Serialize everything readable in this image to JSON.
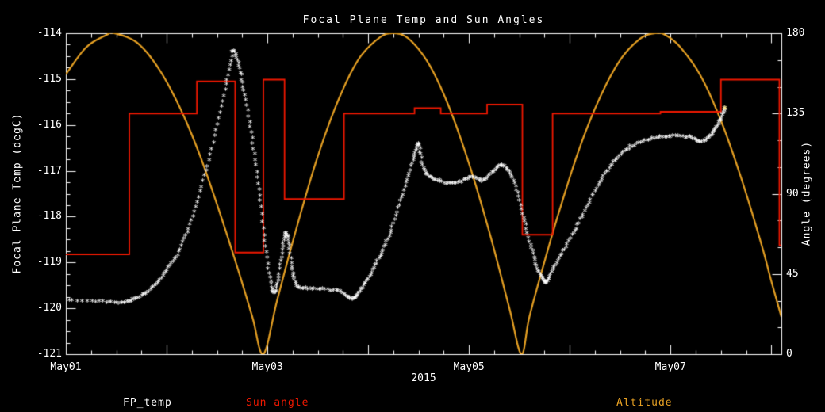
{
  "colors": {
    "background": "#000000",
    "axis": "#ffffff",
    "fp_temp": "#ffffff",
    "sun_angle": "#f01800",
    "altitude": "#e6a023",
    "end_marker": "#ffe87a"
  },
  "chart_data": {
    "type": "line",
    "title": "Focal Plane Temp and Sun Angles",
    "xlabel": "2015",
    "x_range_days": [
      0,
      7.1
    ],
    "x_ticks": [
      {
        "day": 0,
        "label": "May01"
      },
      {
        "day": 2,
        "label": "May03"
      },
      {
        "day": 4,
        "label": "May05"
      },
      {
        "day": 6,
        "label": "May07"
      }
    ],
    "left_axis": {
      "label": "Focal Plane Temp (degC)",
      "range": [
        -121,
        -114
      ],
      "ticks": [
        -114,
        -115,
        -116,
        -117,
        -118,
        -119,
        -120,
        -121
      ]
    },
    "right_axis": {
      "label": "Angle (degrees)",
      "range": [
        0,
        180
      ],
      "ticks": [
        180,
        135,
        90,
        45,
        0
      ]
    },
    "end_marker_color": "#ffe87a",
    "series": [
      {
        "name": "Altitude",
        "color": "#e6a023",
        "style": "smooth",
        "axis": "right",
        "points": [
          [
            0.0,
            157
          ],
          [
            0.2,
            172
          ],
          [
            0.4,
            179
          ],
          [
            0.48,
            180
          ],
          [
            0.7,
            175
          ],
          [
            0.9,
            162
          ],
          [
            1.1,
            142
          ],
          [
            1.3,
            116
          ],
          [
            1.5,
            84
          ],
          [
            1.7,
            49
          ],
          [
            1.85,
            21
          ],
          [
            1.96,
            0
          ],
          [
            2.1,
            31
          ],
          [
            2.3,
            73
          ],
          [
            2.5,
            111
          ],
          [
            2.7,
            142
          ],
          [
            2.9,
            165
          ],
          [
            3.1,
            177
          ],
          [
            3.24,
            180
          ],
          [
            3.4,
            177
          ],
          [
            3.6,
            163
          ],
          [
            3.8,
            139
          ],
          [
            4.0,
            107
          ],
          [
            4.2,
            69
          ],
          [
            4.4,
            26
          ],
          [
            4.52,
            0
          ],
          [
            4.6,
            21
          ],
          [
            4.75,
            52
          ],
          [
            4.9,
            81
          ],
          [
            5.1,
            116
          ],
          [
            5.3,
            144
          ],
          [
            5.5,
            165
          ],
          [
            5.7,
            177
          ],
          [
            5.85,
            180
          ],
          [
            5.95,
            179
          ],
          [
            6.1,
            172
          ],
          [
            6.3,
            156
          ],
          [
            6.5,
            131
          ],
          [
            6.7,
            99
          ],
          [
            6.9,
            62
          ],
          [
            7.0,
            41
          ],
          [
            7.1,
            21
          ]
        ]
      },
      {
        "name": "Sun angle",
        "color": "#f01800",
        "style": "step",
        "axis": "right",
        "points": [
          [
            0.0,
            56
          ],
          [
            0.63,
            135
          ],
          [
            1.3,
            153
          ],
          [
            1.68,
            57
          ],
          [
            1.96,
            154
          ],
          [
            2.17,
            87
          ],
          [
            2.76,
            135
          ],
          [
            3.46,
            138
          ],
          [
            3.72,
            135
          ],
          [
            4.18,
            140
          ],
          [
            4.53,
            67
          ],
          [
            4.83,
            135
          ],
          [
            5.9,
            136
          ],
          [
            6.5,
            154
          ],
          [
            7.08,
            61
          ],
          [
            7.1,
            61
          ]
        ]
      },
      {
        "name": "FP_temp",
        "color": "#ffffff",
        "style": "markers",
        "axis": "left",
        "points": [
          [
            0.0,
            -119.87
          ],
          [
            0.3,
            -119.88
          ],
          [
            0.5,
            -119.92
          ],
          [
            0.62,
            -119.88
          ],
          [
            0.72,
            -119.8
          ],
          [
            0.82,
            -119.65
          ],
          [
            0.92,
            -119.45
          ],
          [
            1.02,
            -119.15
          ],
          [
            1.12,
            -118.8
          ],
          [
            1.22,
            -118.3
          ],
          [
            1.32,
            -117.6
          ],
          [
            1.42,
            -116.8
          ],
          [
            1.52,
            -115.9
          ],
          [
            1.6,
            -115.05
          ],
          [
            1.66,
            -114.42
          ],
          [
            1.71,
            -114.7
          ],
          [
            1.76,
            -115.2
          ],
          [
            1.82,
            -115.95
          ],
          [
            1.88,
            -116.8
          ],
          [
            1.93,
            -117.7
          ],
          [
            1.98,
            -118.7
          ],
          [
            2.03,
            -119.45
          ],
          [
            2.07,
            -119.7
          ],
          [
            2.11,
            -119.35
          ],
          [
            2.15,
            -118.75
          ],
          [
            2.18,
            -118.4
          ],
          [
            2.21,
            -118.6
          ],
          [
            2.25,
            -119.2
          ],
          [
            2.29,
            -119.55
          ],
          [
            2.4,
            -119.6
          ],
          [
            2.55,
            -119.62
          ],
          [
            2.7,
            -119.65
          ],
          [
            2.8,
            -119.78
          ],
          [
            2.86,
            -119.82
          ],
          [
            2.92,
            -119.65
          ],
          [
            3.0,
            -119.4
          ],
          [
            3.08,
            -119.05
          ],
          [
            3.16,
            -118.7
          ],
          [
            3.24,
            -118.25
          ],
          [
            3.32,
            -117.7
          ],
          [
            3.4,
            -117.15
          ],
          [
            3.46,
            -116.7
          ],
          [
            3.5,
            -116.45
          ],
          [
            3.54,
            -116.9
          ],
          [
            3.6,
            -117.15
          ],
          [
            3.7,
            -117.25
          ],
          [
            3.82,
            -117.32
          ],
          [
            3.94,
            -117.25
          ],
          [
            4.04,
            -117.18
          ],
          [
            4.14,
            -117.25
          ],
          [
            4.24,
            -117.05
          ],
          [
            4.32,
            -116.92
          ],
          [
            4.4,
            -117.05
          ],
          [
            4.47,
            -117.45
          ],
          [
            4.54,
            -118.05
          ],
          [
            4.61,
            -118.65
          ],
          [
            4.67,
            -119.1
          ],
          [
            4.73,
            -119.4
          ],
          [
            4.77,
            -119.45
          ],
          [
            4.83,
            -119.2
          ],
          [
            4.92,
            -118.85
          ],
          [
            5.02,
            -118.45
          ],
          [
            5.12,
            -118.05
          ],
          [
            5.22,
            -117.6
          ],
          [
            5.32,
            -117.2
          ],
          [
            5.42,
            -116.9
          ],
          [
            5.52,
            -116.65
          ],
          [
            5.64,
            -116.47
          ],
          [
            5.78,
            -116.36
          ],
          [
            5.92,
            -116.3
          ],
          [
            6.06,
            -116.28
          ],
          [
            6.2,
            -116.32
          ],
          [
            6.3,
            -116.4
          ],
          [
            6.38,
            -116.3
          ],
          [
            6.45,
            -116.1
          ],
          [
            6.5,
            -115.9
          ],
          [
            6.54,
            -115.68
          ]
        ]
      }
    ],
    "legend": [
      {
        "label": "FP_temp",
        "color": "#ffffff"
      },
      {
        "label": "Sun angle",
        "color": "#f01800"
      },
      {
        "label": "Altitude",
        "color": "#e6a023"
      }
    ]
  }
}
